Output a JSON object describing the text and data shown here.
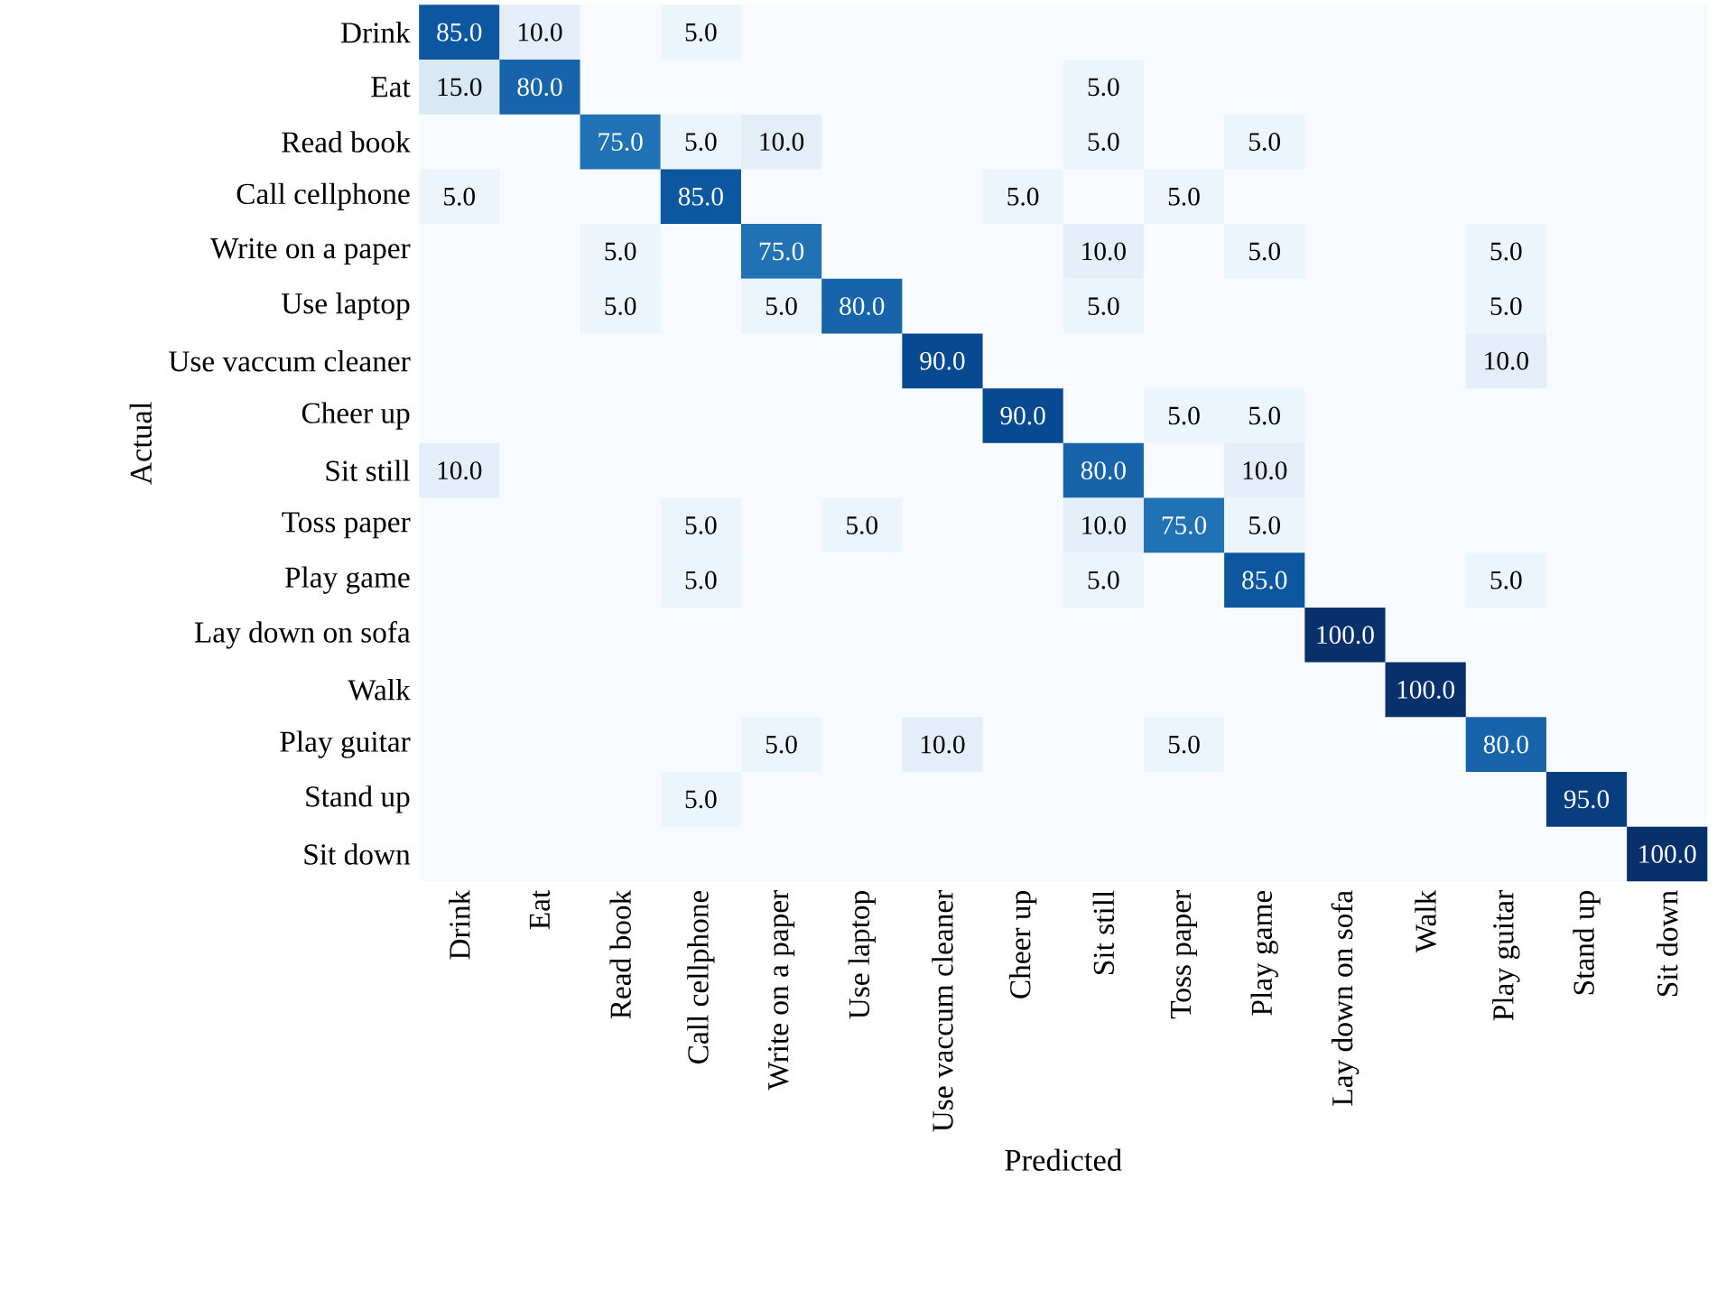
{
  "chart_data": {
    "type": "heatmap",
    "xlabel": "Predicted",
    "ylabel": "Actual",
    "categories": [
      "Drink",
      "Eat",
      "Read book",
      "Call cellphone",
      "Write on a paper",
      "Use laptop",
      "Use vaccum cleaner",
      "Cheer up",
      "Sit still",
      "Toss paper",
      "Play game",
      "Lay down on sofa",
      "Walk",
      "Play guitar",
      "Stand up",
      "Sit down"
    ],
    "y_categories": [
      "Drink",
      "Eat",
      "Read book",
      "Call cellphone",
      "Write on a paper",
      "Use laptop",
      "Use vaccum cleaner",
      "Cheer up",
      "Sit still",
      "Toss paper",
      "Play game",
      "Lay down on sofa",
      "Walk",
      "Play guitar",
      "Stand up",
      "Sit down"
    ],
    "cells": [
      [
        85,
        10,
        null,
        5,
        null,
        null,
        null,
        null,
        null,
        null,
        null,
        null,
        null,
        null,
        null,
        null
      ],
      [
        15,
        80,
        null,
        null,
        null,
        null,
        null,
        null,
        5,
        null,
        null,
        null,
        null,
        null,
        null,
        null
      ],
      [
        null,
        null,
        75,
        5,
        10,
        null,
        null,
        null,
        5,
        null,
        5,
        null,
        null,
        null,
        null,
        null
      ],
      [
        5,
        null,
        null,
        85,
        null,
        null,
        null,
        5,
        null,
        5,
        null,
        null,
        null,
        null,
        null,
        null
      ],
      [
        null,
        null,
        5,
        null,
        75,
        null,
        null,
        null,
        10,
        null,
        5,
        null,
        null,
        5,
        null,
        null
      ],
      [
        null,
        null,
        5,
        null,
        5,
        80,
        null,
        null,
        5,
        null,
        null,
        null,
        null,
        5,
        null,
        null
      ],
      [
        null,
        null,
        null,
        null,
        null,
        null,
        90,
        null,
        null,
        null,
        null,
        null,
        null,
        10,
        null,
        null
      ],
      [
        null,
        null,
        null,
        null,
        null,
        null,
        null,
        90,
        null,
        5,
        5,
        null,
        null,
        null,
        null,
        null
      ],
      [
        10,
        null,
        null,
        null,
        null,
        null,
        null,
        null,
        80,
        null,
        10,
        null,
        null,
        null,
        null,
        null
      ],
      [
        null,
        null,
        null,
        5,
        null,
        5,
        null,
        null,
        10,
        75,
        5,
        null,
        null,
        null,
        null,
        null
      ],
      [
        null,
        null,
        null,
        5,
        null,
        null,
        null,
        null,
        5,
        null,
        85,
        null,
        null,
        5,
        null,
        null
      ],
      [
        null,
        null,
        null,
        null,
        null,
        null,
        null,
        null,
        null,
        null,
        null,
        100,
        null,
        null,
        null,
        null
      ],
      [
        null,
        null,
        null,
        null,
        null,
        null,
        null,
        null,
        null,
        null,
        null,
        null,
        100,
        null,
        null,
        null
      ],
      [
        null,
        null,
        null,
        null,
        5,
        null,
        10,
        null,
        null,
        5,
        null,
        null,
        null,
        80,
        null,
        null
      ],
      [
        null,
        null,
        null,
        5,
        null,
        null,
        null,
        null,
        null,
        null,
        null,
        null,
        null,
        null,
        95,
        null
      ],
      [
        null,
        null,
        null,
        null,
        null,
        null,
        null,
        null,
        null,
        null,
        null,
        null,
        null,
        null,
        null,
        100
      ]
    ],
    "cell_labels": [
      [
        "85.0",
        "10.0",
        null,
        "5.0",
        null,
        null,
        null,
        null,
        null,
        null,
        null,
        null,
        null,
        null,
        null,
        null
      ],
      [
        "15.0",
        "80.0",
        null,
        null,
        null,
        null,
        null,
        null,
        "5.0",
        null,
        null,
        null,
        null,
        null,
        null,
        null
      ],
      [
        null,
        null,
        "75.0",
        "5.0",
        "10.0",
        null,
        null,
        null,
        "5.0",
        null,
        "5.0",
        null,
        null,
        null,
        null,
        null
      ],
      [
        "5.0",
        null,
        null,
        "85.0",
        null,
        null,
        null,
        "5.0",
        null,
        "5.0",
        null,
        null,
        null,
        null,
        null,
        null
      ],
      [
        null,
        null,
        "5.0",
        null,
        "75.0",
        null,
        null,
        null,
        "10.0",
        null,
        "5.0",
        null,
        null,
        "5.0",
        null,
        null
      ],
      [
        null,
        null,
        "5.0",
        null,
        "5.0",
        "80.0",
        null,
        null,
        "5.0",
        null,
        null,
        null,
        null,
        "5.0",
        null,
        null
      ],
      [
        null,
        null,
        null,
        null,
        null,
        null,
        "90.0",
        null,
        null,
        null,
        null,
        null,
        null,
        "10.0",
        null,
        null
      ],
      [
        null,
        null,
        null,
        null,
        null,
        null,
        null,
        "90.0",
        null,
        "5.0",
        "5.0",
        null,
        null,
        null,
        null,
        null
      ],
      [
        "10.0",
        null,
        null,
        null,
        null,
        null,
        null,
        null,
        "80.0",
        null,
        "10.0",
        null,
        null,
        null,
        null,
        null
      ],
      [
        null,
        null,
        null,
        "5.0",
        null,
        "5.0",
        null,
        null,
        "10.0",
        "75.0",
        "5.0",
        null,
        null,
        null,
        null,
        null
      ],
      [
        null,
        null,
        null,
        "5.0",
        null,
        null,
        null,
        null,
        "5.0",
        null,
        "85.0",
        null,
        null,
        "5.0",
        null,
        null
      ],
      [
        null,
        null,
        null,
        null,
        null,
        null,
        null,
        null,
        null,
        null,
        null,
        "100.0",
        null,
        null,
        null,
        null
      ],
      [
        null,
        null,
        null,
        null,
        null,
        null,
        null,
        null,
        null,
        null,
        null,
        null,
        "100.0",
        null,
        null,
        null
      ],
      [
        null,
        null,
        null,
        null,
        "5.0",
        null,
        "10.0",
        null,
        null,
        "5.0",
        null,
        null,
        null,
        "80.0",
        null,
        null
      ],
      [
        null,
        null,
        null,
        "5.0",
        null,
        null,
        null,
        null,
        null,
        null,
        null,
        null,
        null,
        null,
        "95.0",
        null
      ],
      [
        null,
        null,
        null,
        null,
        null,
        null,
        null,
        null,
        null,
        null,
        null,
        null,
        null,
        null,
        null,
        "100.0"
      ]
    ]
  }
}
